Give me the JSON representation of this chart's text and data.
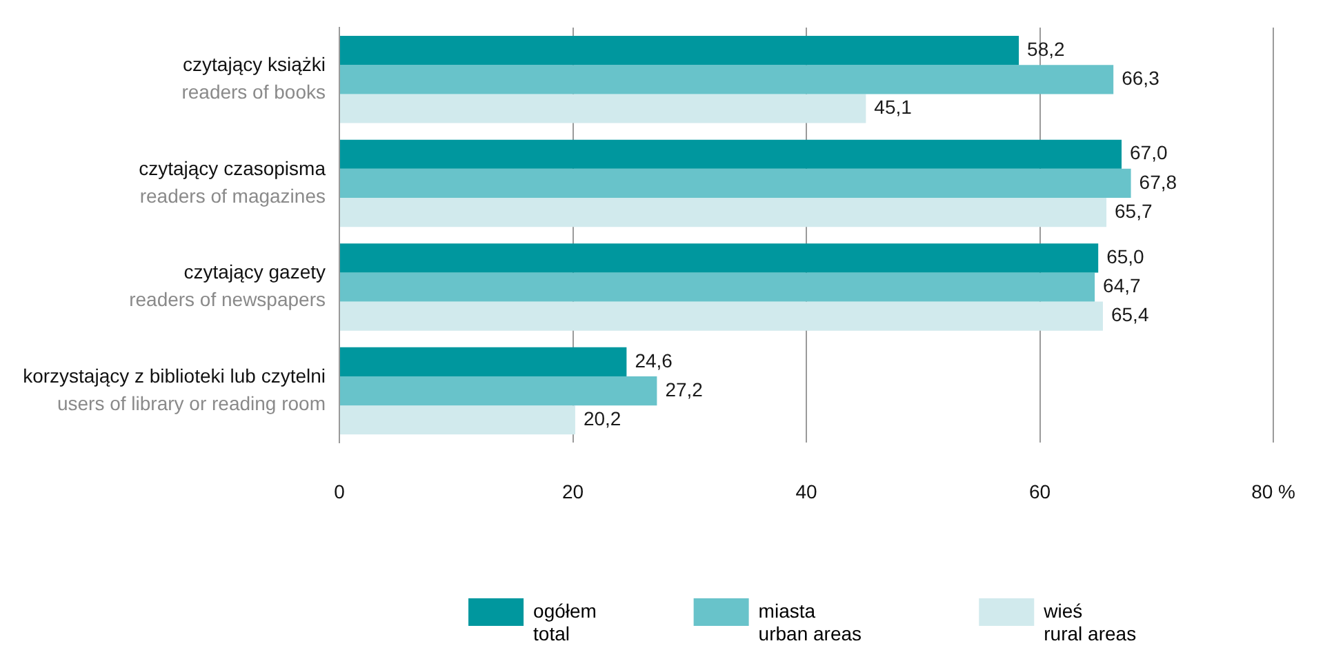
{
  "chart_data": {
    "type": "bar",
    "orientation": "horizontal",
    "categories": [
      "czytający książki\nreaders of books",
      "czytający czasopisma\nreaders of magazines",
      "czytający gazety\nreaders of newspapers",
      "korzystający z biblioteki lub czytelni\nusers of library or reading room"
    ],
    "series": [
      {
        "name": "ogółem\ntotal",
        "color": "#00979e",
        "values": [
          58.2,
          67.0,
          65.0,
          24.6
        ],
        "value_labels": [
          "58,2",
          "67,0",
          "65,0",
          "24,6"
        ]
      },
      {
        "name": "miasta\nurban areas",
        "color": "#68c3ca",
        "values": [
          66.3,
          67.8,
          64.7,
          27.2
        ],
        "value_labels": [
          "66,3",
          "67,8",
          "64,7",
          "27,2"
        ]
      },
      {
        "name": "wieś\nrural areas",
        "color": "#d1eaed",
        "values": [
          45.1,
          65.7,
          65.4,
          20.2
        ],
        "value_labels": [
          "45,1",
          "65,7",
          "65,4",
          "20,2"
        ]
      }
    ],
    "xlim": [
      0,
      80
    ],
    "xticks": [
      0,
      20,
      40,
      60,
      {
        "value": 80,
        "label": "80 %"
      }
    ],
    "grid": "x",
    "legend": "bottom"
  }
}
